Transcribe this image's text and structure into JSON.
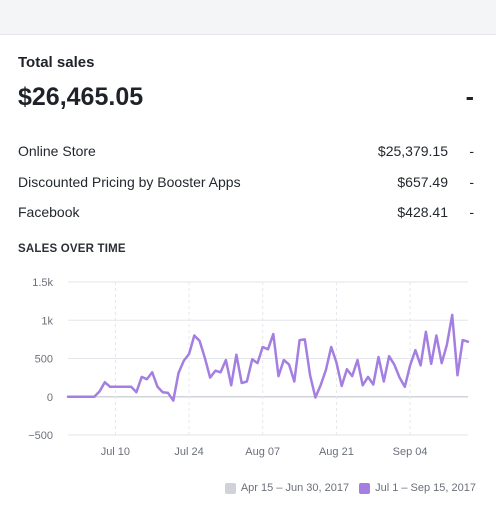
{
  "card": {
    "title": "Total sales",
    "total": "$26,465.05",
    "total_change": "-"
  },
  "breakdown": [
    {
      "label": "Online Store",
      "value": "$25,379.15",
      "change": "-"
    },
    {
      "label": "Discounted Pricing by Booster Apps",
      "value": "$657.49",
      "change": "-"
    },
    {
      "label": "Facebook",
      "value": "$428.41",
      "change": "-"
    }
  ],
  "section_title": "SALES OVER TIME",
  "legend": {
    "previous": "Apr 15 – Jun 30, 2017",
    "current": "Jul 1 – Sep 15, 2017"
  },
  "colors": {
    "current_series": "#a47ee0",
    "previous_series": "#cfd3d8",
    "zero_line": "#d0d3d8",
    "grid": "#e3e6ea"
  },
  "chart_data": {
    "type": "line",
    "title": "SALES OVER TIME",
    "y_tick_labels": [
      "1.5k",
      "1k",
      "500",
      "0",
      "−500"
    ],
    "y_ticks": [
      1500,
      1000,
      500,
      0,
      -500
    ],
    "ylim": [
      -500,
      1500
    ],
    "x_tick_labels": [
      "Jul 10",
      "Jul 24",
      "Aug 07",
      "Aug 21",
      "Sep 04"
    ],
    "x_tick_days": [
      10,
      24,
      38,
      52,
      66
    ],
    "x_range": [
      1,
      77
    ],
    "grid": true,
    "legend_position": "bottom-right",
    "series": [
      {
        "name": "Jul 1 – Sep 15, 2017",
        "x_day_of_range": [
          1,
          2,
          3,
          4,
          5,
          6,
          7,
          8,
          9,
          10,
          11,
          12,
          13,
          14,
          15,
          16,
          17,
          18,
          19,
          20,
          21,
          22,
          23,
          24,
          25,
          26,
          27,
          28,
          29,
          30,
          31,
          32,
          33,
          34,
          35,
          36,
          37,
          38,
          39,
          40,
          41,
          42,
          43,
          44,
          45,
          46,
          47,
          48,
          49,
          50,
          51,
          52,
          53,
          54,
          55,
          56,
          57,
          58,
          59,
          60,
          61,
          62,
          63,
          64,
          65,
          66,
          67,
          68,
          69,
          70,
          71,
          72,
          73,
          74,
          75,
          76,
          77
        ],
        "values": [
          0,
          0,
          0,
          0,
          0,
          0,
          70,
          190,
          130,
          130,
          130,
          130,
          130,
          60,
          260,
          230,
          320,
          130,
          60,
          50,
          -50,
          310,
          470,
          560,
          800,
          730,
          510,
          250,
          340,
          320,
          480,
          150,
          550,
          180,
          200,
          490,
          440,
          650,
          620,
          820,
          270,
          480,
          420,
          200,
          740,
          750,
          280,
          -10,
          150,
          350,
          650,
          450,
          140,
          360,
          270,
          480,
          150,
          260,
          160,
          520,
          200,
          530,
          420,
          250,
          130,
          410,
          610,
          410,
          850,
          430,
          800,
          440,
          680,
          1070,
          280,
          740,
          720
        ]
      }
    ]
  }
}
